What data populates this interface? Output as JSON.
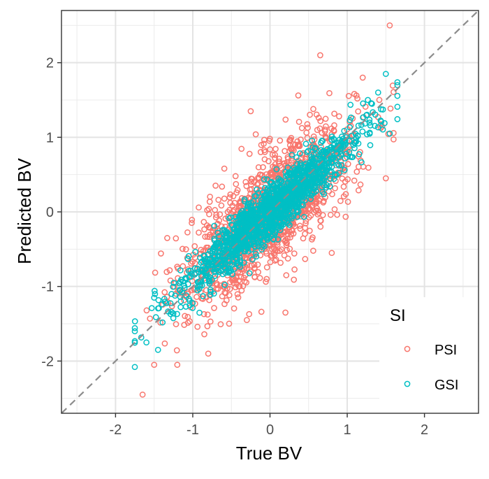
{
  "chart_data": {
    "type": "scatter",
    "xlabel": "True BV",
    "ylabel": "Predicted BV",
    "xlim": [
      -2.7,
      2.7
    ],
    "ylim": [
      -2.7,
      2.7
    ],
    "xticks": [
      "-2",
      "-1",
      "0",
      "1",
      "2"
    ],
    "xtick_values": [
      -2,
      -1,
      0,
      1,
      2
    ],
    "yticks": [
      "-2",
      "-1",
      "0",
      "1",
      "2"
    ],
    "ytick_values": [
      -2,
      -1,
      0,
      1,
      2
    ],
    "grid": true,
    "reference_line": "y = x (dashed)",
    "legend_title": "SI",
    "legend_position": "right-bottom inside",
    "series": [
      {
        "name": "PSI",
        "color": "#F8766D",
        "marker": "open-circle",
        "spread": 0.38,
        "points_approx": [
          [
            1.55,
            2.5
          ],
          [
            0.65,
            2.1
          ],
          [
            -1.65,
            -2.45
          ],
          [
            1.5,
            0.45
          ],
          [
            -1.5,
            -2.05
          ],
          [
            -1.2,
            -2.05
          ],
          [
            0.8,
            -0.55
          ],
          [
            -0.8,
            -1.9
          ],
          [
            0.2,
            -1.35
          ],
          [
            -0.3,
            -1.45
          ],
          [
            1.2,
            1.8
          ],
          [
            -0.25,
            1.35
          ]
        ]
      },
      {
        "name": "GSI",
        "color": "#00BFC4",
        "marker": "open-circle",
        "spread": 0.18,
        "points_approx": [
          [
            1.5,
            1.85
          ],
          [
            1.65,
            1.7
          ],
          [
            1.55,
            1.05
          ],
          [
            -1.75,
            -1.6
          ],
          [
            -1.6,
            -1.75
          ],
          [
            -1.5,
            -1.15
          ],
          [
            1.4,
            1.6
          ],
          [
            -1.45,
            -1.85
          ]
        ]
      }
    ]
  }
}
